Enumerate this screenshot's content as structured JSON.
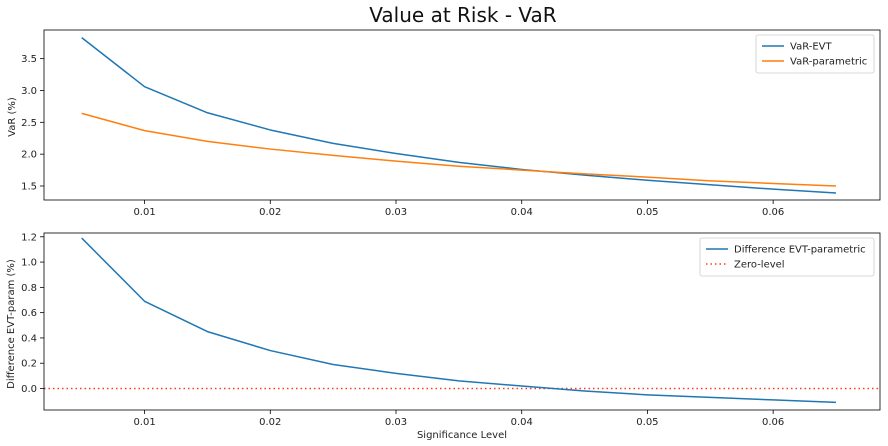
{
  "chart_data": [
    {
      "type": "line",
      "title": "Value at Risk - VaR",
      "xlabel": "",
      "ylabel": "VaR (%)",
      "xlim": [
        0.002,
        0.0685
      ],
      "ylim": [
        1.28,
        3.95
      ],
      "xticks": [
        0.01,
        0.02,
        0.03,
        0.04,
        0.05,
        0.06
      ],
      "xtick_labels": [
        "0.01",
        "0.02",
        "0.03",
        "0.04",
        "0.05",
        "0.06"
      ],
      "yticks": [
        1.5,
        2.0,
        2.5,
        3.0,
        3.5
      ],
      "ytick_labels": [
        "1.5",
        "2.0",
        "2.5",
        "3.0",
        "3.5"
      ],
      "legend_position": "upper-right",
      "x": [
        0.005,
        0.01,
        0.015,
        0.02,
        0.025,
        0.03,
        0.035,
        0.04,
        0.045,
        0.05,
        0.055,
        0.06,
        0.065
      ],
      "series": [
        {
          "name": "VaR-EVT",
          "color": "#1f77b4",
          "style": "solid",
          "values": [
            3.83,
            3.06,
            2.65,
            2.38,
            2.17,
            2.01,
            1.87,
            1.76,
            1.67,
            1.59,
            1.52,
            1.45,
            1.39
          ]
        },
        {
          "name": "VaR-parametric",
          "color": "#ff7f0e",
          "style": "solid",
          "values": [
            2.64,
            2.37,
            2.2,
            2.08,
            1.98,
            1.89,
            1.81,
            1.75,
            1.69,
            1.64,
            1.58,
            1.54,
            1.5
          ]
        }
      ]
    },
    {
      "type": "line",
      "title": "",
      "xlabel": "Significance Level",
      "ylabel": "Difference EVT-param (%)",
      "xlim": [
        0.002,
        0.0685
      ],
      "ylim": [
        -0.17,
        1.23
      ],
      "xticks": [
        0.01,
        0.02,
        0.03,
        0.04,
        0.05,
        0.06
      ],
      "xtick_labels": [
        "0.01",
        "0.02",
        "0.03",
        "0.04",
        "0.05",
        "0.06"
      ],
      "yticks": [
        0.0,
        0.2,
        0.4,
        0.6,
        0.8,
        1.0,
        1.2
      ],
      "ytick_labels": [
        "0.0",
        "0.2",
        "0.4",
        "0.6",
        "0.8",
        "1.0",
        "1.2"
      ],
      "legend_position": "upper-right",
      "x": [
        0.005,
        0.01,
        0.015,
        0.02,
        0.025,
        0.03,
        0.035,
        0.04,
        0.045,
        0.05,
        0.055,
        0.06,
        0.065
      ],
      "series": [
        {
          "name": "Difference EVT-parametric",
          "color": "#1f77b4",
          "style": "solid",
          "values": [
            1.19,
            0.69,
            0.45,
            0.3,
            0.19,
            0.12,
            0.06,
            0.02,
            -0.02,
            -0.05,
            -0.07,
            -0.09,
            -0.11
          ]
        }
      ],
      "reference_lines": [
        {
          "name": "Zero-level",
          "color": "#ff3b1f",
          "style": "dotted",
          "y": 0.0
        }
      ]
    }
  ]
}
